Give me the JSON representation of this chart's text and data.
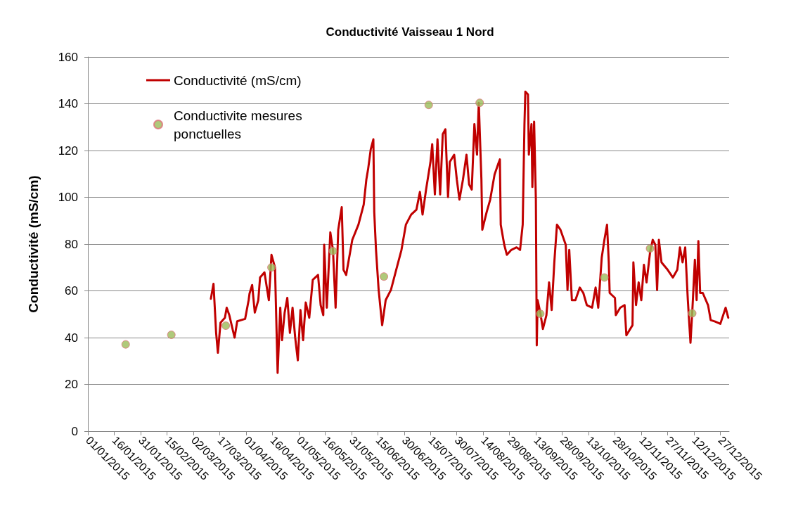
{
  "chart_data": {
    "type": "line",
    "title": "Conductivité Vaisseau 1 Nord",
    "ylabel": "Conductivité (mS/cm)",
    "xlim": [
      "2015-01-01",
      "2016-01-01"
    ],
    "ylim": [
      0,
      160
    ],
    "yticks": [
      0,
      20,
      40,
      60,
      80,
      100,
      120,
      140,
      160
    ],
    "xticks": [
      {
        "value": "2015-01-01",
        "label": "01/01/2015"
      },
      {
        "value": "2015-01-16",
        "label": "16/01/2015"
      },
      {
        "value": "2015-01-31",
        "label": "31/01/2015"
      },
      {
        "value": "2015-02-15",
        "label": "15/02/2015"
      },
      {
        "value": "2015-03-02",
        "label": "02/03/2015"
      },
      {
        "value": "2015-03-17",
        "label": "17/03/2015"
      },
      {
        "value": "2015-04-01",
        "label": "01/04/2015"
      },
      {
        "value": "2015-04-16",
        "label": "16/04/2015"
      },
      {
        "value": "2015-05-01",
        "label": "01/05/2015"
      },
      {
        "value": "2015-05-16",
        "label": "16/05/2015"
      },
      {
        "value": "2015-05-31",
        "label": "31/05/2015"
      },
      {
        "value": "2015-06-15",
        "label": "15/06/2015"
      },
      {
        "value": "2015-06-30",
        "label": "30/06/2015"
      },
      {
        "value": "2015-07-15",
        "label": "15/07/2015"
      },
      {
        "value": "2015-07-30",
        "label": "30/07/2015"
      },
      {
        "value": "2015-08-14",
        "label": "14/08/2015"
      },
      {
        "value": "2015-08-29",
        "label": "29/08/2015"
      },
      {
        "value": "2015-09-13",
        "label": "13/09/2015"
      },
      {
        "value": "2015-09-28",
        "label": "28/09/2015"
      },
      {
        "value": "2015-10-13",
        "label": "13/10/2015"
      },
      {
        "value": "2015-10-28",
        "label": "28/10/2015"
      },
      {
        "value": "2015-11-12",
        "label": "12/11/2015"
      },
      {
        "value": "2015-11-27",
        "label": "27/11/2015"
      },
      {
        "value": "2015-12-12",
        "label": "12/12/2015"
      },
      {
        "value": "2015-12-27",
        "label": "27/12/2015"
      }
    ],
    "grid": "y",
    "legend": "top left",
    "series": [
      {
        "name": "Conductivité (mS/cm)",
        "marker": "none",
        "line_style": "solid",
        "color": "#c00000",
        "x": [
          "2015-03-12",
          "2015-03-13T12:00",
          "2015-03-15",
          "2015-03-16",
          "2015-03-17T12:00",
          "2015-03-20",
          "2015-03-21",
          "2015-03-22T12:00",
          "2015-03-25T12:00",
          "2015-03-27",
          "2015-03-31T12:00",
          "2015-04-02T12:00",
          "2015-04-03",
          "2015-04-04T12:00",
          "2015-04-06",
          "2015-04-08",
          "2015-04-09",
          "2015-04-11T12:00",
          "2015-04-14",
          "2015-04-15T12:00",
          "2015-04-17T12:00",
          "2015-04-19",
          "2015-04-20T12:00",
          "2015-04-21T12:00",
          "2015-04-23",
          "2015-04-24T12:00",
          "2015-04-26",
          "2015-04-27T12:00",
          "2015-04-29",
          "2015-04-30T12:00",
          "2015-05-02",
          "2015-05-03T12:00",
          "2015-05-05",
          "2015-05-07",
          "2015-05-09",
          "2015-05-12",
          "2015-05-13T12:00",
          "2015-05-15",
          "2015-05-15T12:00",
          "2015-05-17",
          "2015-05-19",
          "2015-05-20T12:00",
          "2015-05-22",
          "2015-05-23T12:00",
          "2015-05-25T12:00",
          "2015-05-26T12:00",
          "2015-05-28",
          "2015-05-29",
          "2015-05-31T12:00",
          "2015-06-04",
          "2015-06-07",
          "2015-06-08T12:00",
          "2015-06-09T12:00",
          "2015-06-11",
          "2015-06-12T12:00",
          "2015-06-13",
          "2015-06-14",
          "2015-06-15T12:00",
          "2015-06-17T12:00",
          "2015-06-19T12:00",
          "2015-06-22T12:00",
          "2015-06-25T12:00",
          "2015-06-28T12:00",
          "2015-07-01",
          "2015-07-04",
          "2015-07-07",
          "2015-07-09",
          "2015-07-10T12:00",
          "2015-07-12T12:00",
          "2015-07-15",
          "2015-07-16",
          "2015-07-17T12:00",
          "2015-07-19",
          "2015-07-20T12:00",
          "2015-07-22",
          "2015-07-23T12:00",
          "2015-07-25",
          "2015-07-26",
          "2015-07-28T12:00",
          "2015-07-30",
          "2015-07-31T12:00",
          "2015-08-02T12:00",
          "2015-08-04T12:00",
          "2015-08-06",
          "2015-08-07T12:00",
          "2015-08-09",
          "2015-08-10T12:00",
          "2015-08-11T12:00",
          "2015-08-13",
          "2015-08-13T12:00",
          "2015-08-16",
          "2015-08-18",
          "2015-08-20T12:00",
          "2015-08-22T12:00",
          "2015-08-23T12:00",
          "2015-08-24",
          "2015-08-26",
          "2015-08-27T12:00",
          "2015-08-30",
          "2015-09-02",
          "2015-09-04",
          "2015-09-05T12:00",
          "2015-09-06T12:00",
          "2015-09-07",
          "2015-09-08T12:00",
          "2015-09-09",
          "2015-09-10T12:00",
          "2015-09-11",
          "2015-09-12",
          "2015-09-13",
          "2015-09-13T12:00",
          "2015-09-14",
          "2015-09-15T12:00",
          "2015-09-17",
          "2015-09-19",
          "2015-09-20T12:00",
          "2015-09-22",
          "2015-09-23T12:00",
          "2015-09-25",
          "2015-09-27",
          "2015-09-30",
          "2015-10-01",
          "2015-10-02",
          "2015-10-03T12:00",
          "2015-10-05T12:00",
          "2015-10-08",
          "2015-10-10",
          "2015-10-12",
          "2015-10-15",
          "2015-10-17",
          "2015-10-18T12:00",
          "2015-10-20T12:00",
          "2015-10-22",
          "2015-10-23T12:00",
          "2015-10-24T12:00",
          "2015-10-25",
          "2015-10-28",
          "2015-10-28T12:00",
          "2015-10-31",
          "2015-11-02T12:00",
          "2015-11-03T12:00",
          "2015-11-07",
          "2015-11-07T12:00",
          "2015-11-09",
          "2015-11-10T12:00",
          "2015-11-12",
          "2015-11-13T12:00",
          "2015-11-15",
          "2015-11-17",
          "2015-11-18T12:00",
          "2015-11-20",
          "2015-11-21",
          "2015-11-22",
          "2015-11-23T12:00",
          "2015-11-27",
          "2015-11-30",
          "2015-12-02T12:00",
          "2015-12-04",
          "2015-12-05T12:00",
          "2015-12-07",
          "2015-12-08T12:00",
          "2015-12-10",
          "2015-12-11",
          "2015-12-12T12:00",
          "2015-12-13T12:00",
          "2015-12-14T12:00",
          "2015-12-15T12:00",
          "2015-12-17",
          "2015-12-20",
          "2015-12-21T12:00",
          "2015-12-24",
          "2015-12-27",
          "2015-12-30",
          "2015-12-31T12:00"
        ],
        "values": [
          56.6,
          63,
          42,
          33.5,
          46.4,
          48.5,
          52.8,
          49.6,
          40,
          47,
          48,
          56,
          58.8,
          62.5,
          50.7,
          56,
          65.7,
          67.9,
          56,
          75.4,
          70,
          24.9,
          52.8,
          38.9,
          50.7,
          57,
          42,
          52.8,
          40,
          30.3,
          51.8,
          38.9,
          55,
          48.5,
          64.7,
          66.8,
          53.9,
          49.6,
          79.7,
          52.8,
          85,
          77.5,
          52.8,
          86.1,
          95.8,
          69,
          66.8,
          71.1,
          81.8,
          88.3,
          96.9,
          107.6,
          112,
          120.5,
          124.8,
          93.7,
          77.5,
          60.4,
          45.3,
          56,
          60.4,
          69,
          77.5,
          88.3,
          92.6,
          94.7,
          102.3,
          92.6,
          103.3,
          115.1,
          122.7,
          101.2,
          124.8,
          101.2,
          127,
          129.1,
          100.1,
          115.1,
          118.2,
          107.6,
          99,
          107.6,
          118.2,
          105.5,
          103.3,
          131.3,
          118.2,
          140.4,
          107.6,
          86.1,
          93.7,
          99,
          109.8,
          114.1,
          116.2,
          88.3,
          79.7,
          75.4,
          77.5,
          78.6,
          77.5,
          88.3,
          131.3,
          145.2,
          144,
          118.2,
          131.3,
          104.4,
          132.3,
          99,
          36.7,
          56,
          50.7,
          43.7,
          49.6,
          63.6,
          51.8,
          72.2,
          88.3,
          86.1,
          79.7,
          60.4,
          77.5,
          56,
          56,
          61.4,
          59.1,
          53.9,
          52.8,
          61.4,
          52.8,
          74.3,
          81.8,
          88.3,
          72.2,
          59.1,
          57,
          49.6,
          52.8,
          53.9,
          41,
          45.3,
          72.2,
          53.9,
          63.6,
          56,
          71.1,
          63.6,
          76.5,
          81.8,
          79.7,
          60.4,
          81.8,
          72.2,
          69,
          65.7,
          69,
          78.6,
          72.2,
          78.6,
          56,
          37.8,
          50.7,
          73.3,
          56,
          81.3,
          59.1,
          59.1,
          53.9,
          47.5,
          46.9,
          45.9,
          52.8,
          48.5
        ]
      },
      {
        "name": "Conductivite mesures ponctuelles",
        "type": "scatter",
        "marker": "circle",
        "color": "#9bbb59",
        "x": [
          "2015-01-22T12:00",
          "2015-02-17T12:00",
          "2015-03-20T12:00",
          "2015-04-15T12:00",
          "2015-05-20T12:00",
          "2015-06-18T12:00",
          "2015-07-14",
          "2015-08-12",
          "2015-09-15T12:00",
          "2015-10-22",
          "2015-11-17",
          "2015-12-11"
        ],
        "values": [
          37.1,
          41.2,
          45.1,
          70,
          77,
          66.1,
          139.5,
          140.4,
          50.2,
          65.7,
          78.1,
          50.4
        ]
      }
    ]
  }
}
